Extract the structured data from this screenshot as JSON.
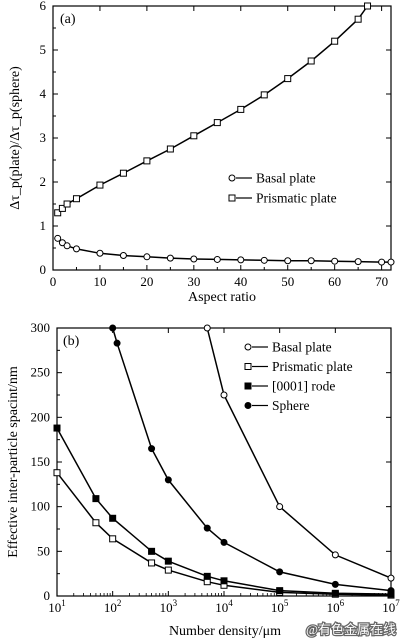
{
  "chart_data": [
    {
      "type": "line",
      "panel_label": "(a)",
      "xlabel": "Aspect ratio",
      "ylabel": "Δτ_p(plate)/Δτ_p(sphere)",
      "xlim": [
        0,
        72
      ],
      "ylim": [
        0,
        6
      ],
      "x_ticks": [
        "0",
        "10",
        "20",
        "30",
        "40",
        "50",
        "60",
        "70"
      ],
      "y_ticks": [
        "0",
        "1",
        "2",
        "3",
        "4",
        "5",
        "6"
      ],
      "legend_position": "right-middle",
      "series": [
        {
          "name": "Basal plate",
          "marker": "open-circle",
          "x": [
            1,
            2,
            3,
            5,
            10,
            15,
            20,
            25,
            30,
            35,
            40,
            45,
            50,
            55,
            60,
            65,
            70,
            72
          ],
          "y": [
            0.72,
            0.62,
            0.55,
            0.48,
            0.38,
            0.33,
            0.3,
            0.27,
            0.25,
            0.24,
            0.23,
            0.22,
            0.21,
            0.21,
            0.2,
            0.19,
            0.18,
            0.18
          ]
        },
        {
          "name": "Prismatic plate",
          "marker": "open-square",
          "x": [
            1,
            2,
            3,
            5,
            10,
            15,
            20,
            25,
            30,
            35,
            40,
            45,
            50,
            55,
            60,
            65,
            67
          ],
          "y": [
            1.3,
            1.4,
            1.5,
            1.62,
            1.93,
            2.2,
            2.48,
            2.75,
            3.05,
            3.35,
            3.65,
            3.98,
            4.35,
            4.75,
            5.2,
            5.7,
            6.0
          ]
        }
      ]
    },
    {
      "type": "line",
      "panel_label": "(b)",
      "xlabel": "Number density/μm",
      "ylabel": "Effective inter-particle spacint/nm",
      "xscale": "log",
      "xlim": [
        10,
        10000000
      ],
      "ylim": [
        0,
        300
      ],
      "x_ticks": [
        {
          "base": "10",
          "exp": "1"
        },
        {
          "base": "10",
          "exp": "2"
        },
        {
          "base": "10",
          "exp": "3"
        },
        {
          "base": "10",
          "exp": "4"
        },
        {
          "base": "10",
          "exp": "5"
        },
        {
          "base": "10",
          "exp": "6"
        },
        {
          "base": "10",
          "exp": "7"
        }
      ],
      "y_ticks": [
        "0",
        "50",
        "100",
        "150",
        "200",
        "250",
        "300"
      ],
      "legend_position": "top-right",
      "series": [
        {
          "name": "Basal plate",
          "marker": "open-circle",
          "x": [
            5000,
            10000,
            100000,
            1000000,
            10000000
          ],
          "y": [
            300,
            225,
            100,
            46,
            20
          ]
        },
        {
          "name": "Prismatic plate",
          "marker": "open-square",
          "x": [
            10,
            50,
            100,
            500,
            1000,
            5000,
            10000,
            100000,
            1000000,
            10000000
          ],
          "y": [
            138,
            82,
            64,
            37,
            29,
            16,
            12,
            4,
            2,
            1
          ]
        },
        {
          "name": "[0001] rode",
          "marker": "filled-square",
          "x": [
            10,
            50,
            100,
            500,
            1000,
            5000,
            10000,
            100000,
            1000000,
            10000000
          ],
          "y": [
            188,
            109,
            87,
            50,
            39,
            22,
            17,
            6,
            3,
            2
          ]
        },
        {
          "name": "Sphere",
          "marker": "filled-circle",
          "x": [
            100,
            120,
            500,
            1000,
            5000,
            10000,
            100000,
            1000000,
            10000000
          ],
          "y": [
            300,
            283,
            165,
            130,
            76,
            60,
            27,
            13,
            6
          ]
        }
      ]
    }
  ],
  "watermark": "@有色金属在线"
}
